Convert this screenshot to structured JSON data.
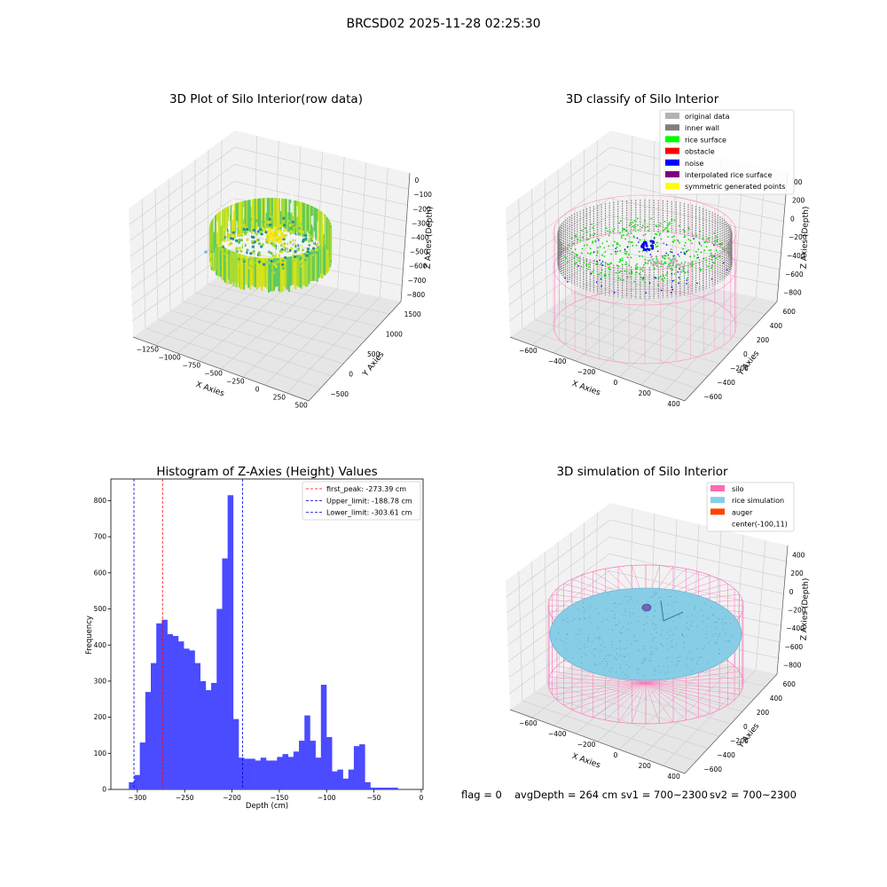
{
  "figure_title": "BRCSD02 2025-11-28 02:25:30",
  "colors": {
    "pane": "#f2f2f2",
    "pane_dark": "#e6e6e6",
    "grid": "#cccccc",
    "hist_bar": "#4b4bff",
    "peak_line": "#ff0000",
    "limit_line": "#0000dd",
    "silo_wire": "#ff77bb",
    "rice_fill": "#87cde6",
    "rice_dot": "#5aa8c4"
  },
  "chart_data": [
    {
      "type": "scatter3d",
      "title": "3D Plot of Silo Interior(row data)",
      "xlabel": "X Axies",
      "ylabel": "Y Axies",
      "zlabel": "Z Axies (Depth)",
      "x_ticks": [
        "−1250",
        "−1000",
        "−750",
        "−500",
        "−250",
        "0",
        "250",
        "500"
      ],
      "y_ticks": [
        "−500",
        "0",
        "500",
        "1000",
        "1500"
      ],
      "z_ticks": [
        "0",
        "−100",
        "−200",
        "−300",
        "−400",
        "−500",
        "−600",
        "−700",
        "−800"
      ],
      "colormap": "viridis"
    },
    {
      "type": "scatter3d",
      "title": "3D classify of Silo Interior",
      "xlabel": "X Axies",
      "ylabel": "Y Axies",
      "zlabel": "Z Axies (Depth)",
      "x_ticks": [
        "−600",
        "−400",
        "−200",
        "0",
        "200",
        "400"
      ],
      "y_ticks": [
        "−600",
        "−400",
        "−200",
        "0",
        "200",
        "400",
        "600"
      ],
      "z_ticks": [
        "200",
        "0",
        "−200",
        "−400",
        "−600",
        "−800"
      ],
      "z_top_partial": "00",
      "legend_position": "top-right",
      "legend": [
        {
          "name": "original data",
          "color": "#b3b3b3"
        },
        {
          "name": "inner wall",
          "color": "#808080"
        },
        {
          "name": "rice surface",
          "color": "#00ff00"
        },
        {
          "name": "obstacle",
          "color": "#ff0000"
        },
        {
          "name": "noise",
          "color": "#0000ff"
        },
        {
          "name": "interpolated rice surface",
          "color": "#800080"
        },
        {
          "name": "symmetric generated points",
          "color": "#ffff00"
        }
      ]
    },
    {
      "type": "bar",
      "title": "Histogram of Z-Axies (Height) Values",
      "xlabel": "Depth (cm)",
      "ylabel": "Frequency",
      "xlim": [
        -328,
        2
      ],
      "ylim": [
        0,
        860
      ],
      "x_ticks": [
        -300,
        -250,
        -200,
        -150,
        -100,
        -50,
        0
      ],
      "y_ticks": [
        0,
        100,
        200,
        300,
        400,
        500,
        600,
        700,
        800
      ],
      "bin_width": 5.8,
      "bin_start": -309,
      "values": [
        20,
        40,
        130,
        270,
        350,
        460,
        470,
        430,
        425,
        410,
        390,
        385,
        350,
        300,
        275,
        295,
        500,
        640,
        815,
        195,
        88,
        85,
        85,
        80,
        88,
        80,
        80,
        90,
        98,
        90,
        105,
        135,
        205,
        135,
        88,
        290,
        145,
        50,
        55,
        30,
        55,
        120,
        125,
        20,
        5,
        5,
        5,
        5,
        5
      ],
      "vlines": [
        {
          "label": "first_peak: -273.39 cm",
          "x": -273.39,
          "color": "#ff0000"
        },
        {
          "label": "Upper_limit: -188.78 cm",
          "x": -188.78,
          "color": "#0000dd"
        },
        {
          "label": "Lower_limit: -303.61 cm",
          "x": -303.61,
          "color": "#0000dd"
        }
      ],
      "grid": false,
      "legend_position": "top-right"
    },
    {
      "type": "surface3d",
      "title": "3D simulation of Silo Interior",
      "xlabel": "X Axies",
      "ylabel": "Y Axies",
      "zlabel": "Z Axies (Depth)",
      "x_ticks": [
        "−600",
        "−400",
        "−200",
        "0",
        "200",
        "400"
      ],
      "y_ticks": [
        "−600",
        "−400",
        "−200",
        "0",
        "200",
        "400",
        "600"
      ],
      "z_ticks": [
        "400",
        "200",
        "0",
        "−200",
        "−400",
        "−600",
        "−800"
      ],
      "legend_position": "top-right",
      "legend": [
        {
          "name": "silo",
          "color": "#ff69b4"
        },
        {
          "name": "rice simulation",
          "color": "#87ceeb"
        },
        {
          "name": "auger",
          "color": "#ff4500"
        },
        {
          "name": "center(-100,11)",
          "color": ""
        }
      ]
    }
  ],
  "footer": {
    "flag": "flag = 0",
    "avg_depth": "avgDepth = 264 cm",
    "sv1": "sv1 = 700~2300",
    "sv2": "sv2 = 700~2300"
  }
}
